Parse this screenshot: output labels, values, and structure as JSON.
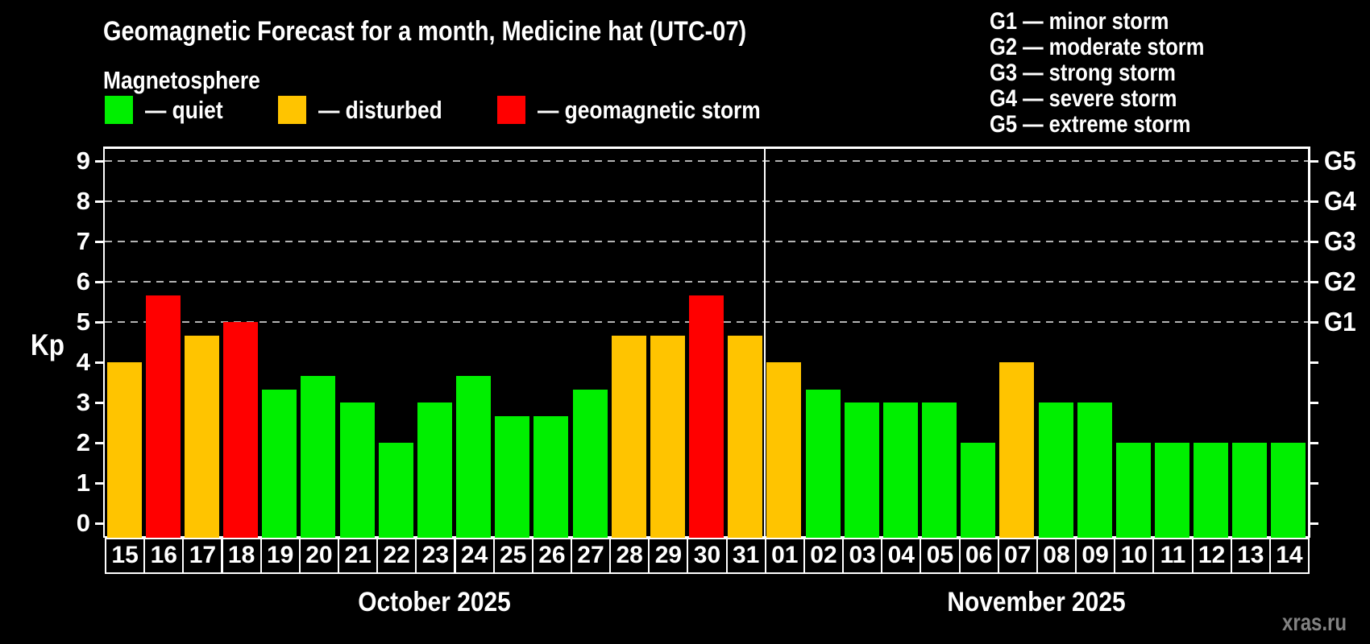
{
  "header": {
    "title": "Geomagnetic Forecast for a month, Medicine hat (UTC-07)",
    "subtitle": "Magnetosphere"
  },
  "legend": {
    "items": [
      {
        "status": "quiet",
        "label": "— quiet"
      },
      {
        "status": "disturbed",
        "label": "— disturbed"
      },
      {
        "status": "storm",
        "label": "— geomagnetic storm"
      }
    ]
  },
  "g_legend": [
    "G1 — minor storm",
    "G2 — moderate storm",
    "G3 — strong storm",
    "G4 — severe storm",
    "G5 — extreme storm"
  ],
  "watermark": "xras.ru",
  "chart_data": {
    "type": "bar",
    "title": "Geomagnetic Forecast for a month, Medicine hat (UTC-07)",
    "ylabel": "Kp",
    "ylim": [
      0,
      9.3
    ],
    "y_ticks": [
      0,
      1,
      2,
      3,
      4,
      5,
      6,
      7,
      8,
      9
    ],
    "gridlines_kp": [
      5,
      6,
      7,
      8,
      9
    ],
    "grid": "dashed horizontal at storm levels only",
    "legend_position": "top-left",
    "right_axis_labels": [
      {
        "text": "G1",
        "kp": 5
      },
      {
        "text": "G2",
        "kp": 6
      },
      {
        "text": "G3",
        "kp": 7
      },
      {
        "text": "G4",
        "kp": 8
      },
      {
        "text": "G5",
        "kp": 9
      }
    ],
    "colors": {
      "quiet": "#00ef00",
      "disturbed": "#ffc400",
      "storm": "#ff0000",
      "grid": "#b4b4b4",
      "axis": "#ffffff",
      "text": "#ffffff",
      "watermark": "#828282",
      "background": "#000000"
    },
    "months": [
      {
        "label": "October 2025",
        "days": [
          {
            "day": "15",
            "kp": 4,
            "status": "disturbed"
          },
          {
            "day": "16",
            "kp": 5.67,
            "status": "storm"
          },
          {
            "day": "17",
            "kp": 4.67,
            "status": "disturbed"
          },
          {
            "day": "18",
            "kp": 5,
            "status": "storm"
          },
          {
            "day": "19",
            "kp": 3.33,
            "status": "quiet"
          },
          {
            "day": "20",
            "kp": 3.67,
            "status": "quiet"
          },
          {
            "day": "21",
            "kp": 3,
            "status": "quiet"
          },
          {
            "day": "22",
            "kp": 2,
            "status": "quiet"
          },
          {
            "day": "23",
            "kp": 3,
            "status": "quiet"
          },
          {
            "day": "24",
            "kp": 3.67,
            "status": "quiet"
          },
          {
            "day": "25",
            "kp": 2.67,
            "status": "quiet"
          },
          {
            "day": "26",
            "kp": 2.67,
            "status": "quiet"
          },
          {
            "day": "27",
            "kp": 3.33,
            "status": "quiet"
          },
          {
            "day": "28",
            "kp": 4.67,
            "status": "disturbed"
          },
          {
            "day": "29",
            "kp": 4.67,
            "status": "disturbed"
          },
          {
            "day": "30",
            "kp": 5.67,
            "status": "storm"
          },
          {
            "day": "31",
            "kp": 4.67,
            "status": "disturbed"
          }
        ]
      },
      {
        "label": "November 2025",
        "days": [
          {
            "day": "01",
            "kp": 4,
            "status": "disturbed"
          },
          {
            "day": "02",
            "kp": 3.33,
            "status": "quiet"
          },
          {
            "day": "03",
            "kp": 3,
            "status": "quiet"
          },
          {
            "day": "04",
            "kp": 3,
            "status": "quiet"
          },
          {
            "day": "05",
            "kp": 3,
            "status": "quiet"
          },
          {
            "day": "06",
            "kp": 2,
            "status": "quiet"
          },
          {
            "day": "07",
            "kp": 4,
            "status": "disturbed"
          },
          {
            "day": "08",
            "kp": 3,
            "status": "quiet"
          },
          {
            "day": "09",
            "kp": 3,
            "status": "quiet"
          },
          {
            "day": "10",
            "kp": 2,
            "status": "quiet"
          },
          {
            "day": "11",
            "kp": 2,
            "status": "quiet"
          },
          {
            "day": "12",
            "kp": 2,
            "status": "quiet"
          },
          {
            "day": "13",
            "kp": 2,
            "status": "quiet"
          },
          {
            "day": "14",
            "kp": 2,
            "status": "quiet"
          }
        ]
      }
    ]
  }
}
